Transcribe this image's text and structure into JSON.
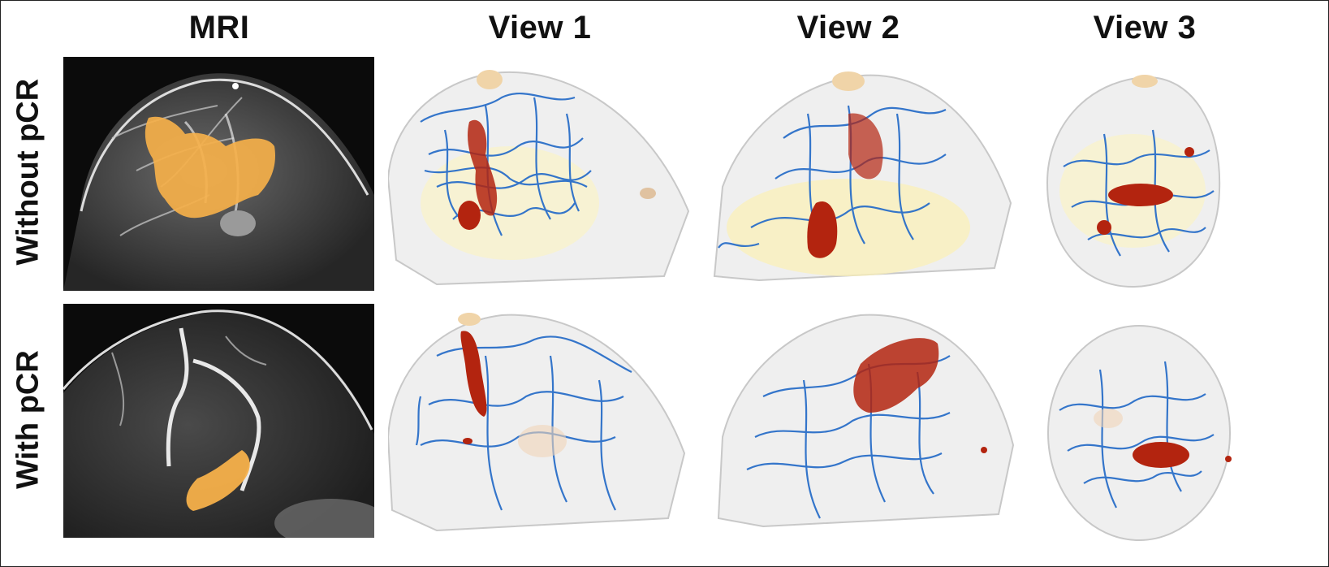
{
  "columns": {
    "mri": "MRI",
    "view1": "View 1",
    "view2": "View 2",
    "view3": "View 3"
  },
  "rows": {
    "top": "Without pCR",
    "bottom": "With pCR"
  },
  "colors": {
    "vessel": "#2a6fc9",
    "tumor": "#b3240f",
    "mri_overlay": "#f5b04a",
    "breast_surface": "#d9d9d9"
  }
}
